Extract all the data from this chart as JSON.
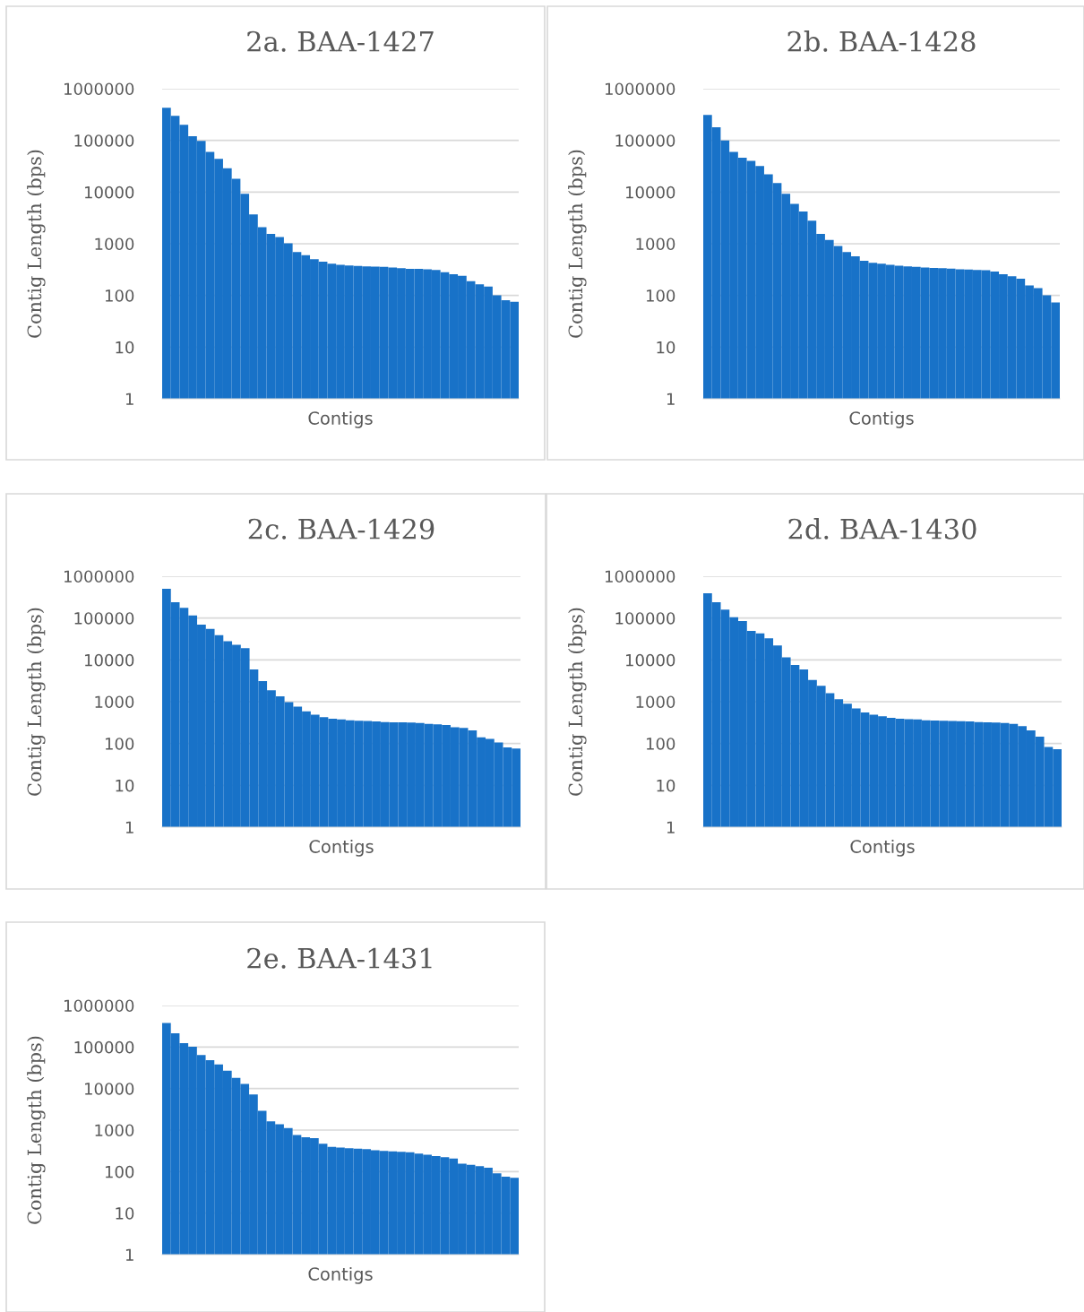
{
  "chart_data": [
    {
      "type": "bar",
      "title": "2a. BAA-1427",
      "xlabel": "Contigs",
      "ylabel": "Contig Length (bps)",
      "log": "y",
      "grid": "y",
      "tick_labels": "y",
      "ylim": [
        1,
        1000000
      ],
      "yticks": [
        1,
        10,
        100,
        1000,
        10000,
        100000,
        1000000
      ],
      "color": "#1872c8",
      "categories": [
        null,
        null,
        null,
        null,
        null,
        null,
        null,
        null,
        null,
        null,
        null,
        null,
        null,
        null,
        null,
        null,
        null,
        null,
        null,
        null,
        null,
        null,
        null,
        null,
        null,
        null,
        null,
        null,
        null,
        null,
        null,
        null,
        null,
        null,
        null,
        null,
        null,
        null,
        null,
        null,
        null
      ],
      "values": [
        430000,
        300000,
        200000,
        120000,
        98000,
        60000,
        44000,
        29000,
        18000,
        9300,
        3700,
        2100,
        1550,
        1350,
        1020,
        690,
        600,
        500,
        450,
        410,
        390,
        380,
        370,
        365,
        360,
        355,
        345,
        335,
        325,
        325,
        320,
        310,
        280,
        255,
        240,
        187,
        163,
        148,
        100,
        80,
        74
      ]
    },
    {
      "type": "bar",
      "title": "2b. BAA-1428",
      "xlabel": "Contigs",
      "ylabel": "Contig Length (bps)",
      "log": "y",
      "grid": "y",
      "tick_labels": "y",
      "ylim": [
        1,
        1000000
      ],
      "yticks": [
        1,
        10,
        100,
        1000,
        10000,
        100000,
        1000000
      ],
      "color": "#1872c8",
      "categories": [
        null,
        null,
        null,
        null,
        null,
        null,
        null,
        null,
        null,
        null,
        null,
        null,
        null,
        null,
        null,
        null,
        null,
        null,
        null,
        null,
        null,
        null,
        null,
        null,
        null,
        null,
        null,
        null,
        null,
        null,
        null,
        null,
        null,
        null,
        null,
        null,
        null,
        null,
        null,
        null,
        null
      ],
      "values": [
        310000,
        180000,
        100000,
        60000,
        46000,
        40000,
        32000,
        22000,
        15000,
        9300,
        5900,
        4200,
        2800,
        1550,
        1180,
        900,
        690,
        570,
        465,
        425,
        410,
        390,
        375,
        365,
        355,
        345,
        340,
        335,
        330,
        320,
        315,
        310,
        308,
        290,
        255,
        235,
        210,
        155,
        138,
        100,
        72
      ]
    },
    {
      "type": "bar",
      "title": "2c. BAA-1429",
      "xlabel": "Contigs",
      "ylabel": "Contig Length (bps)",
      "log": "y",
      "grid": "y",
      "tick_labels": "y",
      "ylim": [
        1,
        1000000
      ],
      "yticks": [
        1,
        10,
        100,
        1000,
        10000,
        100000,
        1000000
      ],
      "color": "#1872c8",
      "categories": [
        null,
        null,
        null,
        null,
        null,
        null,
        null,
        null,
        null,
        null,
        null,
        null,
        null,
        null,
        null,
        null,
        null,
        null,
        null,
        null,
        null,
        null,
        null,
        null,
        null,
        null,
        null,
        null,
        null,
        null,
        null,
        null,
        null,
        null,
        null,
        null,
        null,
        null,
        null,
        null,
        null
      ],
      "values": [
        500000,
        240000,
        175000,
        115000,
        70000,
        55000,
        39000,
        28000,
        23000,
        19000,
        5900,
        3100,
        1880,
        1350,
        975,
        760,
        590,
        490,
        425,
        390,
        375,
        360,
        350,
        345,
        335,
        325,
        320,
        320,
        315,
        310,
        295,
        285,
        275,
        245,
        235,
        205,
        140,
        128,
        105,
        80,
        75
      ]
    },
    {
      "type": "bar",
      "title": "2d. BAA-1430",
      "xlabel": "Contigs",
      "ylabel": "Contig Length (bps)",
      "log": "y",
      "grid": "y",
      "tick_labels": "y",
      "ylim": [
        1,
        1000000
      ],
      "yticks": [
        1,
        10,
        100,
        1000,
        10000,
        100000,
        1000000
      ],
      "color": "#1872c8",
      "categories": [
        null,
        null,
        null,
        null,
        null,
        null,
        null,
        null,
        null,
        null,
        null,
        null,
        null,
        null,
        null,
        null,
        null,
        null,
        null,
        null,
        null,
        null,
        null,
        null,
        null,
        null,
        null,
        null,
        null,
        null,
        null,
        null,
        null,
        null,
        null,
        null,
        null,
        null,
        null,
        null,
        null
      ],
      "values": [
        390000,
        240000,
        160000,
        105000,
        85000,
        49000,
        43000,
        33000,
        22000,
        11500,
        7600,
        5900,
        3300,
        2400,
        1600,
        1150,
        890,
        690,
        550,
        490,
        450,
        410,
        390,
        380,
        375,
        360,
        355,
        350,
        345,
        340,
        335,
        325,
        320,
        315,
        307,
        295,
        260,
        205,
        145,
        82,
        72
      ]
    },
    {
      "type": "bar",
      "title": "2e. BAA-1431",
      "xlabel": "Contigs",
      "ylabel": "Contig Length (bps)",
      "log": "y",
      "grid": "y",
      "tick_labels": "y",
      "ylim": [
        1,
        1000000
      ],
      "yticks": [
        1,
        10,
        100,
        1000,
        10000,
        100000,
        1000000
      ],
      "color": "#1872c8",
      "categories": [
        null,
        null,
        null,
        null,
        null,
        null,
        null,
        null,
        null,
        null,
        null,
        null,
        null,
        null,
        null,
        null,
        null,
        null,
        null,
        null,
        null,
        null,
        null,
        null,
        null,
        null,
        null,
        null,
        null,
        null,
        null,
        null,
        null,
        null,
        null,
        null,
        null,
        null,
        null,
        null,
        null
      ],
      "values": [
        380000,
        215000,
        124000,
        102000,
        64000,
        48000,
        38000,
        27000,
        18000,
        13000,
        7200,
        2900,
        1620,
        1380,
        1120,
        760,
        670,
        640,
        465,
        395,
        380,
        365,
        355,
        345,
        325,
        315,
        307,
        300,
        290,
        270,
        253,
        236,
        222,
        205,
        155,
        145,
        135,
        123,
        90,
        74,
        70
      ]
    }
  ]
}
